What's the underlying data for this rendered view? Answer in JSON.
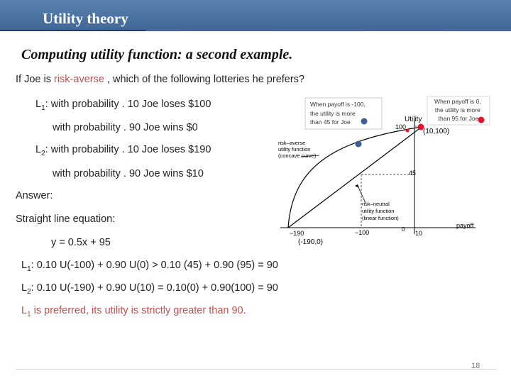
{
  "header": {
    "title": "Utility theory"
  },
  "subtitle": "Computing utility function: a second example.",
  "question": {
    "prefix": "If Joe is ",
    "highlight": "risk-averse",
    "suffix": " , which of the following lotteries he prefers?"
  },
  "lottery1": {
    "label": "L",
    "sub": "1",
    "line1": ": with probability . 10 Joe loses $100",
    "line2": "with probability . 90 Joe wins $0"
  },
  "lottery2": {
    "label": "L",
    "sub": "2",
    "line1": ": with probability . 10 Joe loses $190",
    "line2": "with probability . 90 Joe wins $10"
  },
  "answer": {
    "heading": "Answer:",
    "line_label": "Straight line equation:",
    "equation": "y = 0.5x + 95",
    "l1_label": "L",
    "l1_sub": "1",
    "l1_calc": ": 0.10 U(-100) + 0.90 U(0) > 0.10 (45) + 0.90 (95) = 90",
    "l2_label": "L",
    "l2_sub": "2",
    "l2_calc": ": 0.10 U(-190) + 0.90 U(10) = 0.10(0) + 0.90(100) = 90",
    "concl_label": "L",
    "concl_sub": "1",
    "conclusion": " is preferred, its utility is strictly greater than 90."
  },
  "diagram": {
    "note_left": [
      "When payoff is -100,",
      "the utility is more",
      "than 45 for Joe"
    ],
    "note_right": [
      "When payoff is 0,",
      "the utility is more",
      "than 95 for Joe"
    ],
    "utility_axis": "Utility",
    "y_tick_100": "100",
    "y_tick_45": "45",
    "point_10_100": "(10,100)",
    "point_m190_0": "(-190,0)",
    "label_concave": [
      "risk–averse",
      "utility function",
      "(concave curve)"
    ],
    "label_linear": [
      "risk–neutral",
      "utility function",
      "(linear function)"
    ],
    "x_tick_m190": "−190",
    "x_tick_m100": "−100",
    "x_tick_0": "0",
    "x_tick_10": "10",
    "payoff_axis": "payoff",
    "colors": {
      "red": "#e8102b",
      "blue": "#3d5e96",
      "accent": "#c0504d",
      "header": "#4a74a6"
    }
  },
  "page_number": "18"
}
